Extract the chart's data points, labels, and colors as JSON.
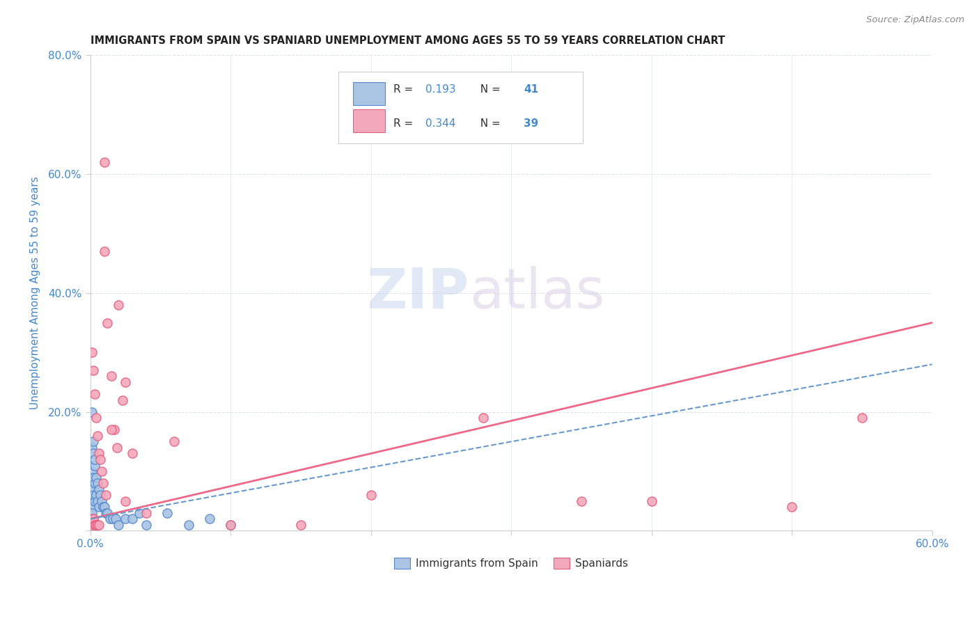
{
  "title": "IMMIGRANTS FROM SPAIN VS SPANIARD UNEMPLOYMENT AMONG AGES 55 TO 59 YEARS CORRELATION CHART",
  "source": "Source: ZipAtlas.com",
  "ylabel": "Unemployment Among Ages 55 to 59 years",
  "xlim": [
    0.0,
    0.6
  ],
  "ylim": [
    0.0,
    0.8
  ],
  "blue_R": 0.193,
  "blue_N": 41,
  "pink_R": 0.344,
  "pink_N": 39,
  "blue_x": [
    0.001,
    0.002,
    0.001,
    0.003,
    0.002,
    0.004,
    0.001,
    0.002,
    0.003,
    0.001,
    0.002,
    0.003,
    0.004,
    0.005,
    0.003,
    0.004,
    0.005,
    0.006,
    0.007,
    0.008,
    0.009,
    0.01,
    0.012,
    0.015,
    0.018,
    0.02,
    0.001,
    0.002,
    0.003,
    0.005,
    0.007,
    0.01,
    0.013,
    0.016,
    0.02,
    0.025,
    0.03,
    0.04,
    0.06,
    0.08,
    0.005
  ],
  "blue_y": [
    0.14,
    0.12,
    0.1,
    0.08,
    0.09,
    0.07,
    0.06,
    0.05,
    0.04,
    0.15,
    0.11,
    0.09,
    0.07,
    0.06,
    0.13,
    0.1,
    0.08,
    0.07,
    0.06,
    0.05,
    0.04,
    0.03,
    0.02,
    0.02,
    0.01,
    0.01,
    0.03,
    0.02,
    0.02,
    0.01,
    0.02,
    0.03,
    0.02,
    0.01,
    0.01,
    0.01,
    0.02,
    0.03,
    0.02,
    0.02,
    0.2
  ],
  "pink_x": [
    0.001,
    0.001,
    0.002,
    0.002,
    0.003,
    0.003,
    0.004,
    0.004,
    0.005,
    0.005,
    0.006,
    0.006,
    0.007,
    0.007,
    0.008,
    0.008,
    0.009,
    0.01,
    0.01,
    0.012,
    0.012,
    0.015,
    0.015,
    0.018,
    0.02,
    0.025,
    0.03,
    0.04,
    0.06,
    0.08,
    0.1,
    0.12,
    0.15,
    0.2,
    0.28,
    0.35,
    0.5,
    0.55,
    0.025
  ],
  "pink_y": [
    0.01,
    0.02,
    0.01,
    0.03,
    0.01,
    0.02,
    0.01,
    0.01,
    0.3,
    0.27,
    0.23,
    0.2,
    0.17,
    0.15,
    0.13,
    0.12,
    0.11,
    0.47,
    0.09,
    0.35,
    0.08,
    0.26,
    0.14,
    0.17,
    0.13,
    0.22,
    0.25,
    0.05,
    0.15,
    0.01,
    0.01,
    0.01,
    0.01,
    0.06,
    0.19,
    0.05,
    0.04,
    0.19,
    0.62
  ],
  "blue_color": "#aac4e4",
  "pink_color": "#f4a8bc",
  "blue_edge_color": "#5588cc",
  "pink_edge_color": "#e06080",
  "blue_line_color": "#6699cc",
  "pink_line_color": "#ee6688",
  "watermark_zip": "ZIP",
  "watermark_atlas": "atlas",
  "background_color": "#ffffff",
  "grid_color": "#dde4ee",
  "title_color": "#222222",
  "tick_color": "#4488cc",
  "ylabel_color": "#4488cc"
}
